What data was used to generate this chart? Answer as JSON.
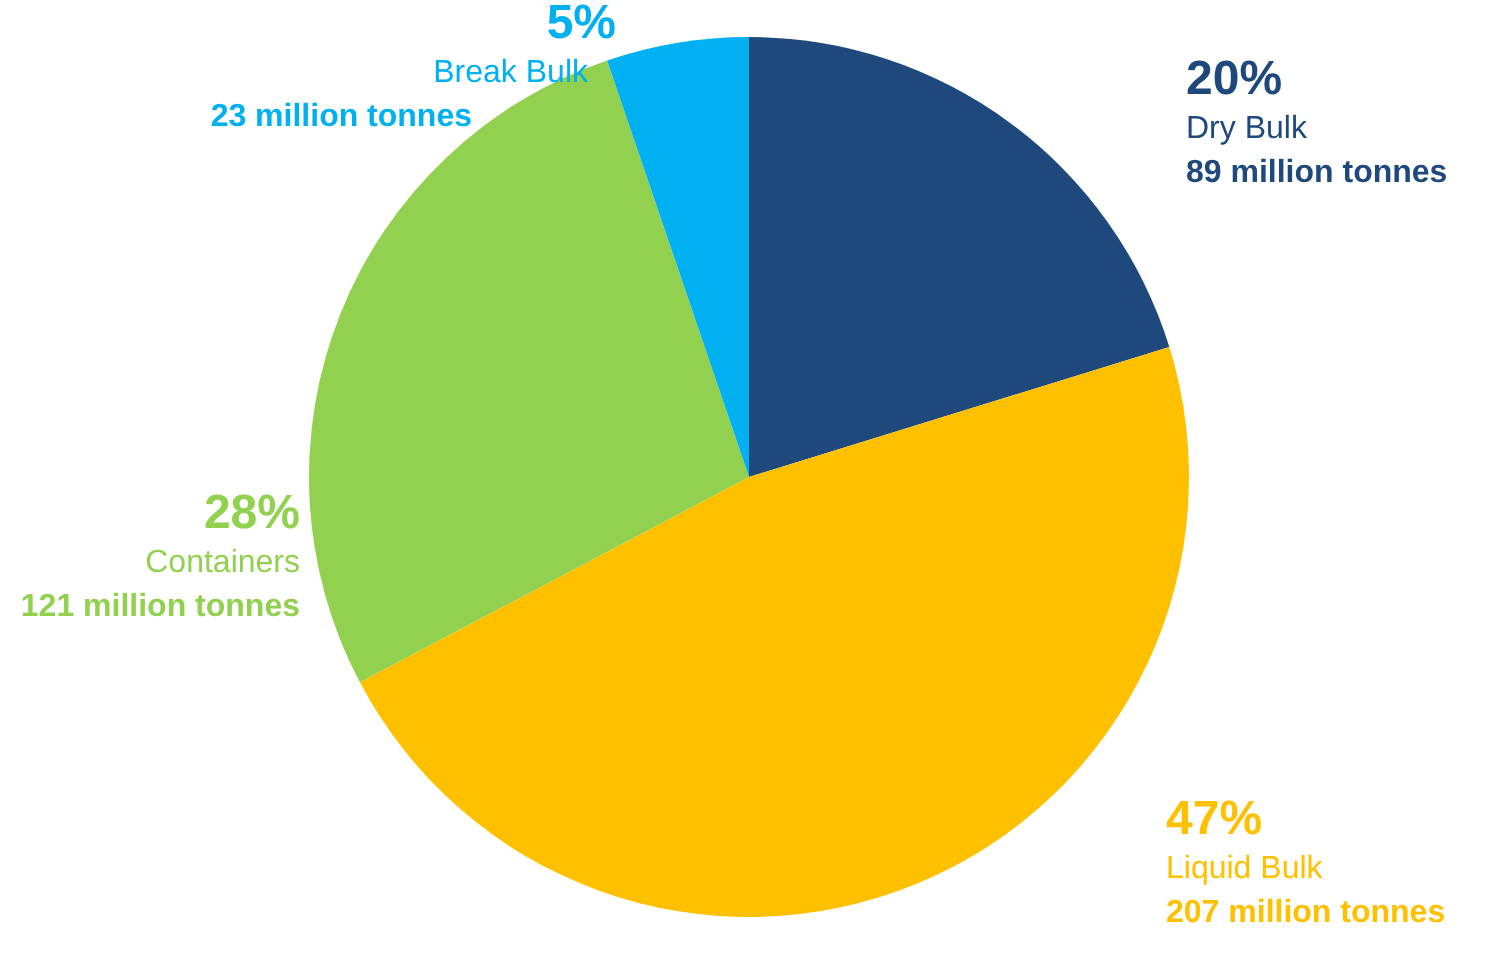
{
  "chart_data": {
    "type": "pie",
    "categories": [
      "Dry Bulk",
      "Liquid Bulk",
      "Containers",
      "Break Bulk"
    ],
    "values": [
      89,
      207,
      121,
      23
    ],
    "colors": [
      "#1f497d",
      "#ffc000",
      "#92d050",
      "#00b0f0"
    ],
    "value_labels": [
      "89 million tonnes",
      "207 million tonnes",
      "121 million tonnes",
      "23 million tonnes"
    ],
    "annotations": [
      "20%",
      "47%",
      "28%",
      "5%"
    ]
  }
}
